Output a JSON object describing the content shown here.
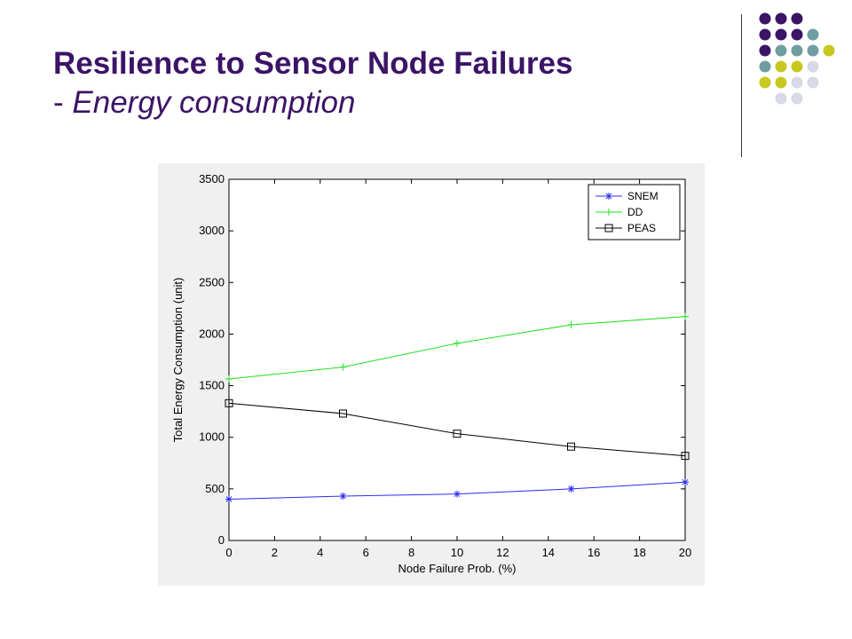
{
  "slide": {
    "title": "Resilience to Sensor Node Failures",
    "subtitle_dash": "- ",
    "subtitle": "Energy consumption"
  },
  "decor": {
    "dot_colors": [
      "#3b1466",
      "#6f9ea0",
      "#c8c820",
      "#d8d8e8"
    ]
  },
  "chart_data": {
    "type": "line",
    "xlabel": "Node Failure Prob. (%)",
    "ylabel": "Total Energy Consumption (unit)",
    "xlim": [
      0,
      20
    ],
    "ylim": [
      0,
      3500
    ],
    "xticks": [
      0,
      2,
      4,
      6,
      8,
      10,
      12,
      14,
      16,
      18,
      20
    ],
    "yticks": [
      0,
      500,
      1000,
      1500,
      2000,
      2500,
      3000,
      3500
    ],
    "grid": false,
    "legend_position": "top-right",
    "x": [
      0,
      5,
      10,
      15,
      20
    ],
    "series": [
      {
        "name": "SNEM",
        "values": [
          400,
          430,
          450,
          500,
          565
        ],
        "color": "#2b2bf0",
        "marker": "asterisk"
      },
      {
        "name": "DD",
        "values": [
          1565,
          1680,
          1910,
          2090,
          2170
        ],
        "color": "#22e022",
        "marker": "plus"
      },
      {
        "name": "PEAS",
        "values": [
          1330,
          1230,
          1035,
          910,
          820
        ],
        "color": "#000000",
        "marker": "square"
      }
    ]
  }
}
